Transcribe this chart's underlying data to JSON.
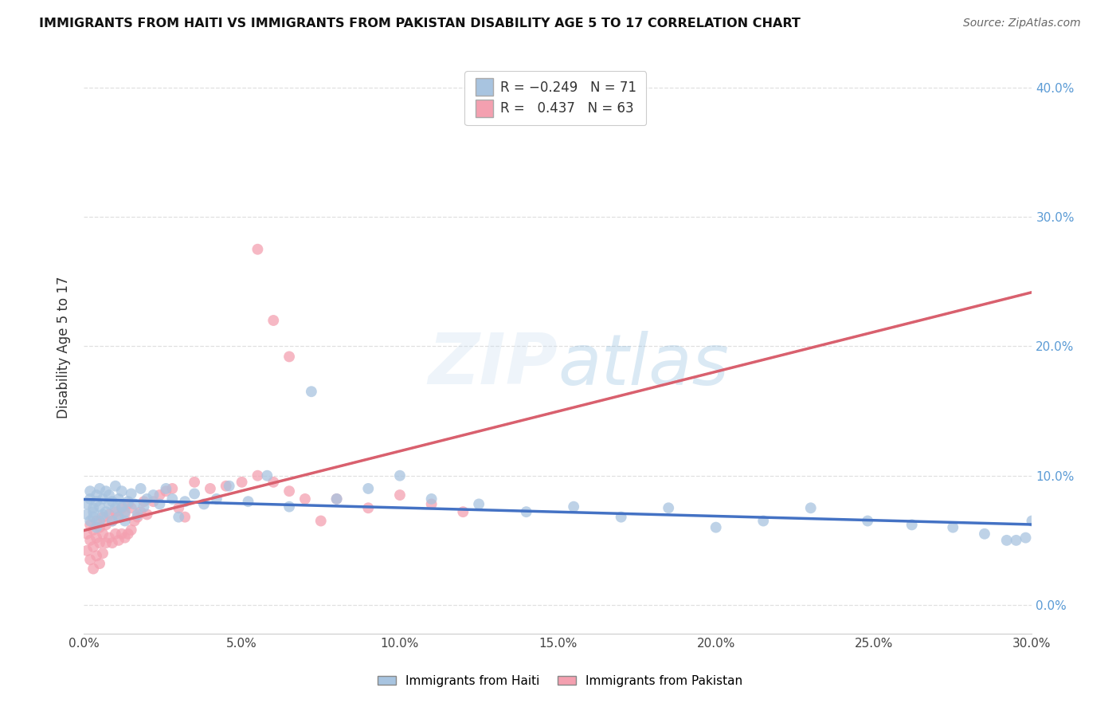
{
  "title": "IMMIGRANTS FROM HAITI VS IMMIGRANTS FROM PAKISTAN DISABILITY AGE 5 TO 17 CORRELATION CHART",
  "source": "Source: ZipAtlas.com",
  "ylabel": "Disability Age 5 to 17",
  "xmin": 0.0,
  "xmax": 0.3,
  "ymin": -0.022,
  "ymax": 0.42,
  "haiti_R": -0.249,
  "haiti_N": 71,
  "pakistan_R": 0.437,
  "pakistan_N": 63,
  "haiti_color": "#a8c4e0",
  "pakistan_color": "#f4a0b0",
  "haiti_line_color": "#4472c4",
  "pakistan_line_color": "#d9606e",
  "dashed_line_color": "#ccaaaa",
  "right_tick_color": "#5b9bd5",
  "watermark_color": "#c5d8ee",
  "background_color": "#ffffff",
  "grid_color": "#e0e0e0",
  "haiti_scatter_x": [
    0.001,
    0.001,
    0.002,
    0.002,
    0.002,
    0.003,
    0.003,
    0.003,
    0.004,
    0.004,
    0.004,
    0.005,
    0.005,
    0.005,
    0.006,
    0.006,
    0.007,
    0.007,
    0.008,
    0.008,
    0.009,
    0.009,
    0.01,
    0.01,
    0.011,
    0.011,
    0.012,
    0.012,
    0.013,
    0.013,
    0.014,
    0.015,
    0.016,
    0.017,
    0.018,
    0.019,
    0.02,
    0.022,
    0.024,
    0.026,
    0.028,
    0.03,
    0.032,
    0.035,
    0.038,
    0.042,
    0.046,
    0.052,
    0.058,
    0.065,
    0.072,
    0.08,
    0.09,
    0.1,
    0.11,
    0.125,
    0.14,
    0.155,
    0.17,
    0.185,
    0.2,
    0.215,
    0.23,
    0.248,
    0.262,
    0.275,
    0.285,
    0.292,
    0.298,
    0.3,
    0.295
  ],
  "haiti_scatter_y": [
    0.078,
    0.07,
    0.082,
    0.065,
    0.088,
    0.072,
    0.075,
    0.068,
    0.08,
    0.085,
    0.06,
    0.076,
    0.09,
    0.065,
    0.082,
    0.07,
    0.088,
    0.072,
    0.078,
    0.085,
    0.065,
    0.08,
    0.075,
    0.092,
    0.068,
    0.082,
    0.076,
    0.088,
    0.072,
    0.065,
    0.08,
    0.086,
    0.078,
    0.07,
    0.09,
    0.076,
    0.082,
    0.085,
    0.078,
    0.09,
    0.082,
    0.068,
    0.08,
    0.086,
    0.078,
    0.082,
    0.092,
    0.08,
    0.1,
    0.076,
    0.165,
    0.082,
    0.09,
    0.1,
    0.082,
    0.078,
    0.072,
    0.076,
    0.068,
    0.075,
    0.06,
    0.065,
    0.075,
    0.065,
    0.062,
    0.06,
    0.055,
    0.05,
    0.052,
    0.065,
    0.05
  ],
  "pakistan_scatter_x": [
    0.001,
    0.001,
    0.002,
    0.002,
    0.002,
    0.003,
    0.003,
    0.003,
    0.004,
    0.004,
    0.004,
    0.005,
    0.005,
    0.005,
    0.006,
    0.006,
    0.006,
    0.007,
    0.007,
    0.008,
    0.008,
    0.009,
    0.009,
    0.01,
    0.01,
    0.011,
    0.011,
    0.012,
    0.012,
    0.013,
    0.013,
    0.014,
    0.014,
    0.015,
    0.015,
    0.016,
    0.017,
    0.018,
    0.019,
    0.02,
    0.022,
    0.024,
    0.026,
    0.028,
    0.03,
    0.032,
    0.035,
    0.04,
    0.045,
    0.05,
    0.055,
    0.06,
    0.065,
    0.07,
    0.075,
    0.08,
    0.09,
    0.1,
    0.11,
    0.12,
    0.055,
    0.06,
    0.065
  ],
  "pakistan_scatter_y": [
    0.055,
    0.042,
    0.062,
    0.05,
    0.035,
    0.058,
    0.045,
    0.028,
    0.065,
    0.052,
    0.038,
    0.06,
    0.048,
    0.032,
    0.068,
    0.055,
    0.04,
    0.062,
    0.048,
    0.07,
    0.052,
    0.065,
    0.048,
    0.072,
    0.055,
    0.068,
    0.05,
    0.075,
    0.055,
    0.07,
    0.052,
    0.078,
    0.055,
    0.075,
    0.058,
    0.065,
    0.068,
    0.072,
    0.08,
    0.07,
    0.08,
    0.085,
    0.088,
    0.09,
    0.075,
    0.068,
    0.095,
    0.09,
    0.092,
    0.095,
    0.1,
    0.095,
    0.088,
    0.082,
    0.065,
    0.082,
    0.075,
    0.085,
    0.078,
    0.072,
    0.275,
    0.22,
    0.192
  ]
}
